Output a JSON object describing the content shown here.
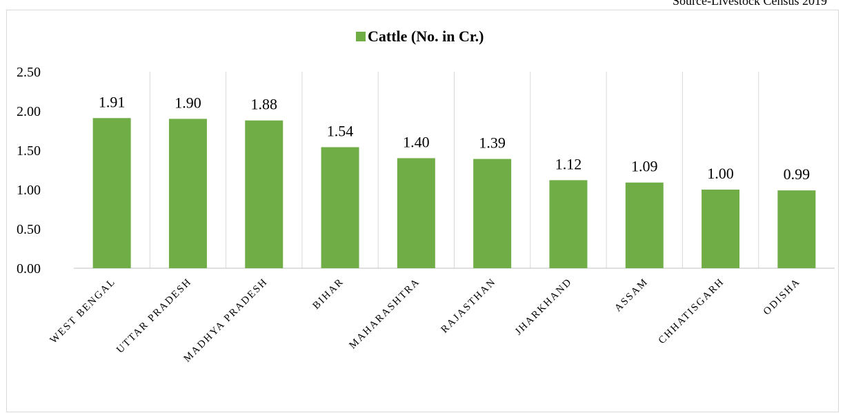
{
  "source_note": "Source-Livestock Census 2019",
  "chart_data": {
    "type": "bar",
    "categories": [
      "WEST BENGAL",
      "UTTAR PRADESH",
      "MADHYA PRADESH",
      "BIHAR",
      "MAHARASHTRA",
      "RAJASTHAN",
      "JHARKHAND",
      "ASSAM",
      "CHHATISGARH",
      "ODISHA"
    ],
    "series": [
      {
        "name": "Cattle (No. in Cr.)",
        "values": [
          1.91,
          1.9,
          1.88,
          1.54,
          1.4,
          1.39,
          1.12,
          1.09,
          1.0,
          0.99
        ],
        "color": "#70ad47"
      }
    ],
    "data_labels": [
      "1.91",
      "1.90",
      "1.88",
      "1.54",
      "1.40",
      "1.39",
      "1.12",
      "1.09",
      "1.00",
      "0.99"
    ],
    "y_ticks": [
      "0.00",
      "0.50",
      "1.00",
      "1.50",
      "2.00",
      "2.50"
    ],
    "ylim": [
      0,
      2.5
    ],
    "legend_position": "top",
    "grid": "vertical category separators",
    "title": "",
    "xlabel": "",
    "ylabel": ""
  }
}
